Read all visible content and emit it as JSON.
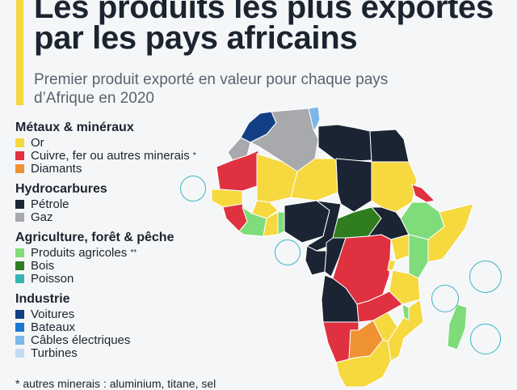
{
  "title_lines": [
    "Les produits les plus exportés",
    "par les pays africains"
  ],
  "subtitle_lines": [
    "Premier produit exporté en valeur pour chaque pays",
    "d’Afrique en 2020"
  ],
  "legend": {
    "metals": {
      "heading": "Métaux & minéraux",
      "items": [
        {
          "label": "Or",
          "note": "",
          "color": "#f6d83f"
        },
        {
          "label": "Cuivre, fer ou autres minerais",
          "note": "*",
          "color": "#df3140"
        },
        {
          "label": "Diamants",
          "note": "",
          "color": "#ef9232"
        }
      ]
    },
    "hydrocarbons": {
      "heading": "Hydrocarbures",
      "items": [
        {
          "label": "Pétrole",
          "note": "",
          "color": "#1b2433"
        },
        {
          "label": "Gaz",
          "note": "",
          "color": "#a7a9ac"
        }
      ]
    },
    "agriculture": {
      "heading": "Agriculture, forêt & pêche",
      "items": [
        {
          "label": "Produits agricoles",
          "note": "**",
          "color": "#7fdc7b"
        },
        {
          "label": "Bois",
          "note": "",
          "color": "#2f7d1f"
        },
        {
          "label": "Poisson",
          "note": "",
          "color": "#37b5b1"
        }
      ]
    },
    "industry": {
      "heading": "Industrie",
      "items": [
        {
          "label": "Voitures",
          "note": "",
          "color": "#123f86"
        },
        {
          "label": "Bateaux",
          "note": "",
          "color": "#1a78cf"
        },
        {
          "label": "Câbles électriques",
          "note": "",
          "color": "#7cb7e8"
        },
        {
          "label": "Turbines",
          "note": "",
          "color": "#c3dcf2"
        }
      ]
    }
  },
  "footnote": "*   autres minerais : aluminium, titane, sel",
  "map_colors": {
    "gold": "#f6d83f",
    "ores": "#df3140",
    "diamonds": "#ef9232",
    "oil": "#1b2433",
    "gas": "#a7a9ac",
    "agri": "#7fdc7b",
    "wood": "#2f7d1f",
    "fish": "#37b5b1",
    "cars": "#123f86",
    "boats": "#1a78cf",
    "cables": "#7cb7e8",
    "turbines": "#c3dcf2",
    "outline": "#ffffff",
    "island_ring": "#3ab6c7"
  }
}
